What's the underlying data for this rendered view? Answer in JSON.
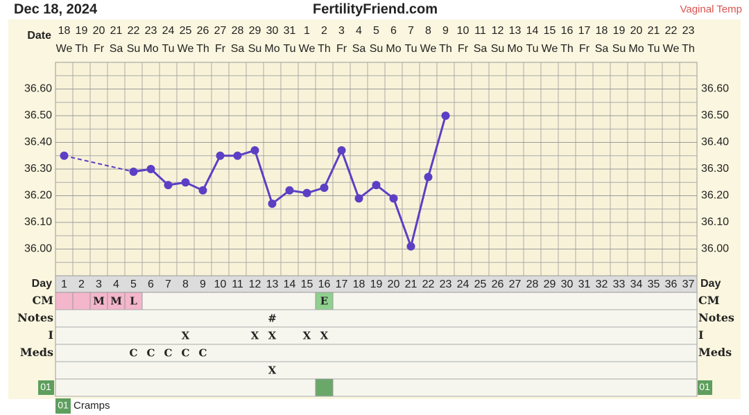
{
  "chart_data": {
    "type": "line",
    "title": "Dec 18, 2024",
    "site": "FertilityFriend.com",
    "subtitle": "Vaginal Temp",
    "date_label": "Date",
    "dates": [
      "18",
      "19",
      "20",
      "21",
      "22",
      "23",
      "24",
      "25",
      "26",
      "27",
      "28",
      "29",
      "30",
      "31",
      "1",
      "2",
      "3",
      "4",
      "5",
      "6",
      "7",
      "8",
      "9",
      "10",
      "11",
      "12",
      "13",
      "14",
      "15",
      "16",
      "17",
      "18",
      "19",
      "20",
      "21",
      "22",
      "23"
    ],
    "weekdays": [
      "We",
      "Th",
      "Fr",
      "Sa",
      "Su",
      "Mo",
      "Tu",
      "We",
      "Th",
      "Fr",
      "Sa",
      "Su",
      "Mo",
      "Tu",
      "We",
      "Th",
      "Fr",
      "Sa",
      "Su",
      "Mo",
      "Tu",
      "We",
      "Th",
      "Fr",
      "Sa",
      "Su",
      "Mo",
      "Tu",
      "We",
      "Th",
      "Fr",
      "Sa",
      "Su",
      "Mo",
      "Tu",
      "We",
      "Th"
    ],
    "day_label": "Day",
    "categories": [
      1,
      2,
      3,
      4,
      5,
      6,
      7,
      8,
      9,
      10,
      11,
      12,
      13,
      14,
      15,
      16,
      17,
      18,
      19,
      20,
      21,
      22,
      23,
      24,
      25,
      26,
      27,
      28,
      29,
      30,
      31,
      32,
      33,
      34,
      35,
      36,
      37
    ],
    "values": [
      36.35,
      null,
      null,
      null,
      36.29,
      36.3,
      36.24,
      36.25,
      36.22,
      36.35,
      36.35,
      36.37,
      36.17,
      36.22,
      36.21,
      36.23,
      36.37,
      36.19,
      36.24,
      36.19,
      36.01,
      36.27,
      36.5,
      null,
      null,
      null,
      null,
      null,
      null,
      null,
      null,
      null,
      null,
      null,
      null,
      null,
      null
    ],
    "color": "#5b3fc4",
    "ylim": [
      35.9,
      36.7
    ],
    "yticks": [
      {
        "value": 36.0,
        "label": "36.00"
      },
      {
        "value": 36.1,
        "label": "36.10"
      },
      {
        "value": 36.2,
        "label": "36.20"
      },
      {
        "value": 36.3,
        "label": "36.30"
      },
      {
        "value": 36.4,
        "label": "36.40"
      },
      {
        "value": 36.5,
        "label": "36.50"
      },
      {
        "value": 36.6,
        "label": "36.60"
      }
    ],
    "grid": true,
    "rows": [
      {
        "label": "CM",
        "cells": {
          "3": "M",
          "4": "M",
          "5": "L",
          "16": "E"
        },
        "fills": {
          "1": "#f4b6cb",
          "2": "#f4b6cb",
          "3": "#f4b6cb",
          "4": "#f4b6cb",
          "5": "#f4b6cb",
          "16": "#8fd08f"
        }
      },
      {
        "label": "Notes",
        "cells": {
          "13": "#"
        }
      },
      {
        "label": "I",
        "cells": {
          "8": "X",
          "12": "X",
          "13": "X",
          "15": "X",
          "16": "X"
        }
      },
      {
        "label": "Meds",
        "cells": {
          "5": "C",
          "6": "C",
          "7": "C",
          "8": "C",
          "9": "C"
        }
      },
      {
        "label": null,
        "cells": {
          "13": "X"
        }
      },
      {
        "label": "01",
        "label_fill": "#5e9e5e",
        "cells": {},
        "fills": {
          "16": "#6aa86a"
        }
      }
    ],
    "legend": {
      "code": "01",
      "text": "Cramps",
      "color": "#5e9e5e"
    }
  }
}
